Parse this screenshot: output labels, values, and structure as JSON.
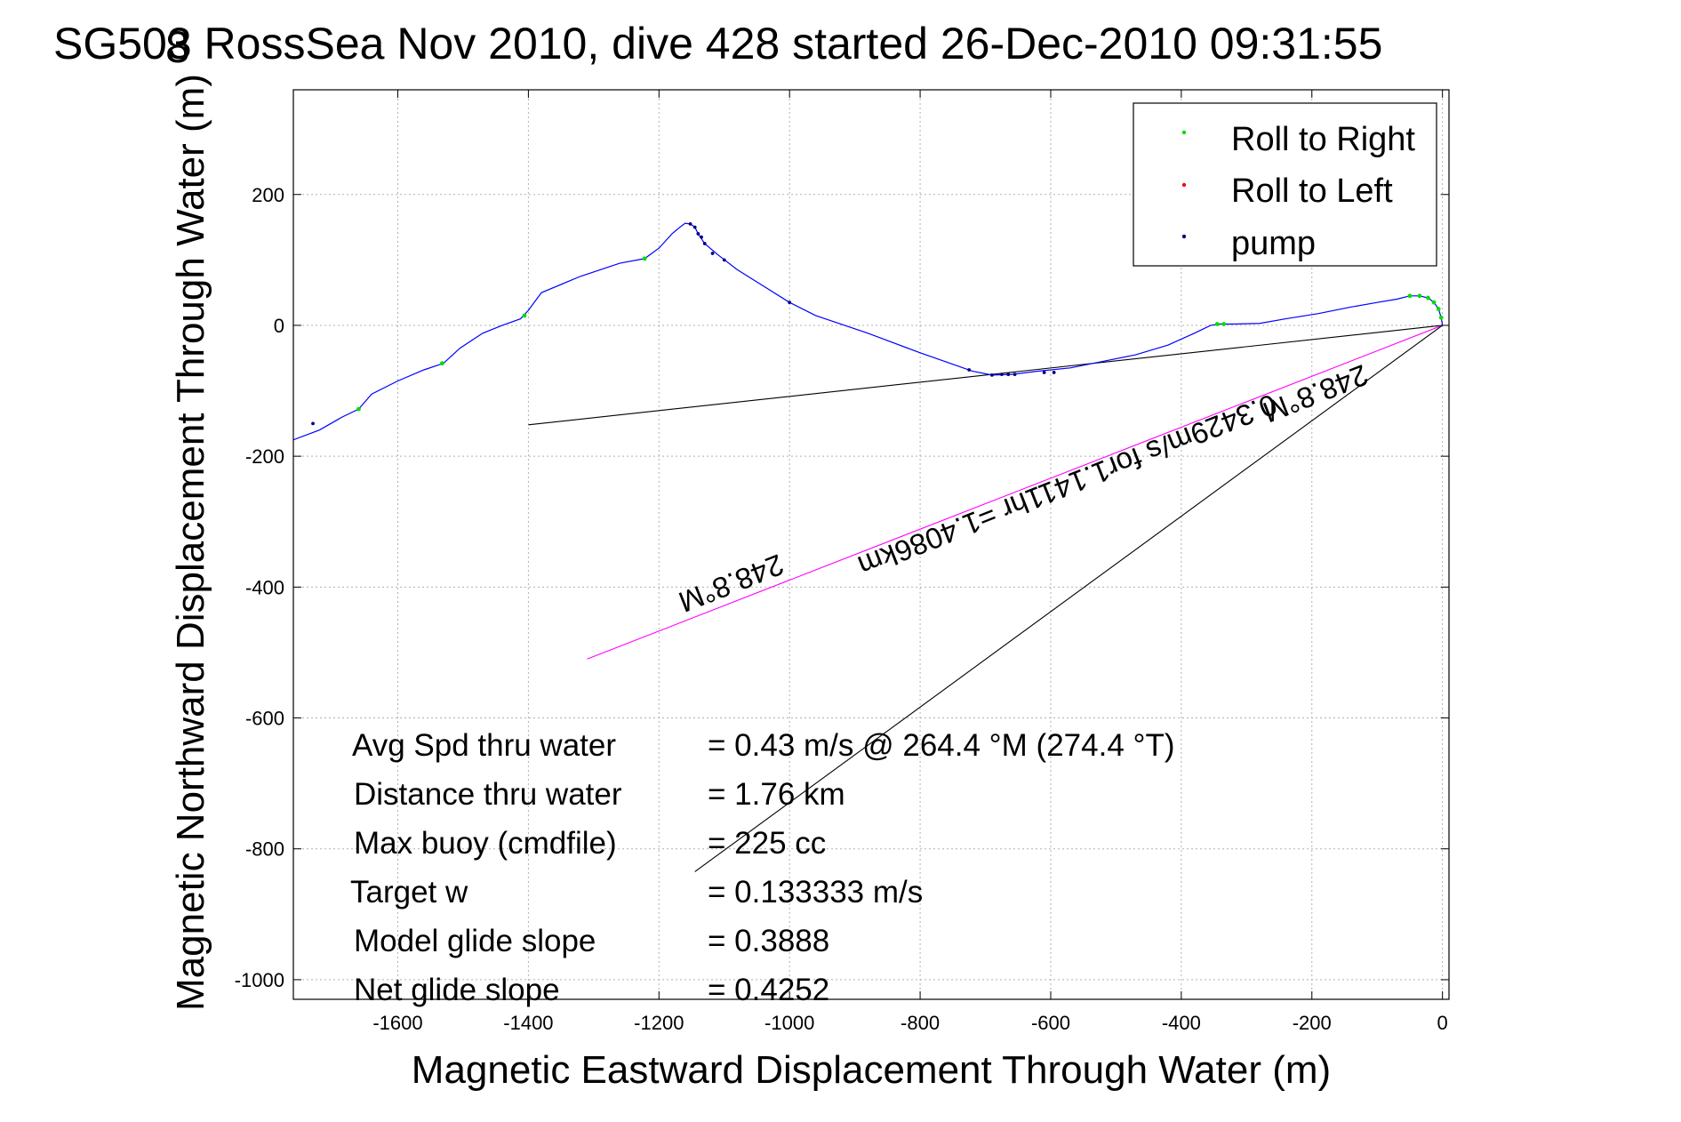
{
  "chart_data": {
    "type": "line",
    "title": "SG503 RossSea Nov 2010, dive 428 started 26-Dec-2010 09:31:55",
    "title_overlap_glyph": "8",
    "xlabel": "Magnetic Eastward Displacement Through Water (m)",
    "ylabel": "Magnetic Northward Displacement Through Water (m)",
    "xlim": [
      -1760,
      10
    ],
    "ylim": [
      -1030,
      360
    ],
    "xticks": [
      -1600,
      -1400,
      -1200,
      -1000,
      -800,
      -600,
      -400,
      -200,
      0
    ],
    "yticks": [
      200,
      0,
      -200,
      -400,
      -600,
      -800,
      -1000
    ],
    "grid": true,
    "legend_position": "top-right",
    "legend": [
      {
        "label": "Roll to Right",
        "color": "#00dd00"
      },
      {
        "label": "Roll to Left",
        "color": "#ff0000"
      },
      {
        "label": "pump",
        "color": "#000080"
      }
    ],
    "track": {
      "color": "#0000ff",
      "points": [
        [
          0,
          0
        ],
        [
          -2,
          12
        ],
        [
          -6,
          25
        ],
        [
          -13,
          35
        ],
        [
          -22,
          42
        ],
        [
          -35,
          45
        ],
        [
          -50,
          45
        ],
        [
          -70,
          40
        ],
        [
          -100,
          35
        ],
        [
          -140,
          28
        ],
        [
          -190,
          18
        ],
        [
          -240,
          10
        ],
        [
          -280,
          3
        ],
        [
          -320,
          2
        ],
        [
          -340,
          2
        ],
        [
          -355,
          0
        ],
        [
          -380,
          -12
        ],
        [
          -420,
          -30
        ],
        [
          -470,
          -45
        ],
        [
          -520,
          -55
        ],
        [
          -570,
          -65
        ],
        [
          -620,
          -70
        ],
        [
          -660,
          -75
        ],
        [
          -690,
          -76
        ],
        [
          -720,
          -70
        ],
        [
          -800,
          -42
        ],
        [
          -880,
          -12
        ],
        [
          -960,
          15
        ],
        [
          -1000,
          35
        ],
        [
          -1040,
          60
        ],
        [
          -1080,
          85
        ],
        [
          -1110,
          108
        ],
        [
          -1130,
          125
        ],
        [
          -1140,
          140
        ],
        [
          -1145,
          150
        ],
        [
          -1152,
          155
        ],
        [
          -1160,
          156
        ],
        [
          -1168,
          150
        ],
        [
          -1180,
          140
        ],
        [
          -1200,
          118
        ],
        [
          -1222,
          102
        ],
        [
          -1260,
          95
        ],
        [
          -1320,
          75
        ],
        [
          -1380,
          50
        ],
        [
          -1400,
          23
        ],
        [
          -1412,
          10
        ],
        [
          -1440,
          0
        ],
        [
          -1470,
          -12
        ],
        [
          -1505,
          -35
        ],
        [
          -1530,
          -58
        ],
        [
          -1560,
          -68
        ],
        [
          -1600,
          -85
        ],
        [
          -1640,
          -105
        ],
        [
          -1660,
          -128
        ],
        [
          -1685,
          -140
        ],
        [
          -1720,
          -160
        ],
        [
          -1760,
          -175
        ]
      ]
    },
    "roll_right_points": [
      [
        -2,
        12
      ],
      [
        -6,
        25
      ],
      [
        -13,
        35
      ],
      [
        -22,
        42
      ],
      [
        -35,
        45
      ],
      [
        -50,
        45
      ],
      [
        -335,
        2
      ],
      [
        -345,
        2
      ],
      [
        -1222,
        102
      ],
      [
        -1406,
        15
      ],
      [
        -1532,
        -58
      ],
      [
        -1660,
        -128
      ]
    ],
    "pump_points": [
      [
        -655,
        -75
      ],
      [
        -665,
        -75
      ],
      [
        -675,
        -75
      ],
      [
        -690,
        -76
      ],
      [
        -610,
        -72
      ],
      [
        -595,
        -72
      ],
      [
        -725,
        -68
      ],
      [
        -1152,
        155
      ],
      [
        -1145,
        150
      ],
      [
        -1140,
        140
      ],
      [
        -1135,
        135
      ],
      [
        -1130,
        125
      ],
      [
        -1118,
        110
      ],
      [
        -1100,
        100
      ],
      [
        -1000,
        35
      ],
      [
        -1730,
        -150
      ]
    ],
    "reference_lines": [
      {
        "name": "current-vector-line",
        "color": "#000000",
        "x": [
          0,
          -1400
        ],
        "y": [
          0,
          -152
        ]
      },
      {
        "name": "heading-line",
        "color": "#ff00ff",
        "x": [
          0,
          -1310
        ],
        "y": [
          0,
          -510
        ]
      },
      {
        "name": "projection-line",
        "color": "#000000",
        "x": [
          0,
          -1145
        ],
        "y": [
          0,
          -835
        ]
      }
    ],
    "rotated_labels": [
      {
        "name": "heading-label-upper",
        "text": "248.8°M",
        "x": -200,
        "y": -90,
        "angle": 201.6
      },
      {
        "name": "current-speed-label",
        "text": "0.3429m/s for1.1411hr =1.4086km",
        "x": -580,
        "y": -230,
        "angle": 201.6
      },
      {
        "name": "heading-label-lower",
        "text": "248.8°M",
        "x": -1095,
        "y": -380,
        "angle": 201.6
      }
    ],
    "stats": [
      {
        "label": "Avg Spd thru water",
        "value": "=  0.43 m/s @ 264.4 °M (274.4 °T)"
      },
      {
        "label": "Distance thru water",
        "value": "=  1.76 km"
      },
      {
        "label": "Max buoy (cmdfile)",
        "value": "= 225 cc"
      },
      {
        "label": "Target w",
        "value": "= 0.133333 m/s"
      },
      {
        "label": "Model glide slope",
        "value": "= 0.3888"
      },
      {
        "label": "Net glide slope",
        "value": "= 0.4252"
      }
    ]
  }
}
